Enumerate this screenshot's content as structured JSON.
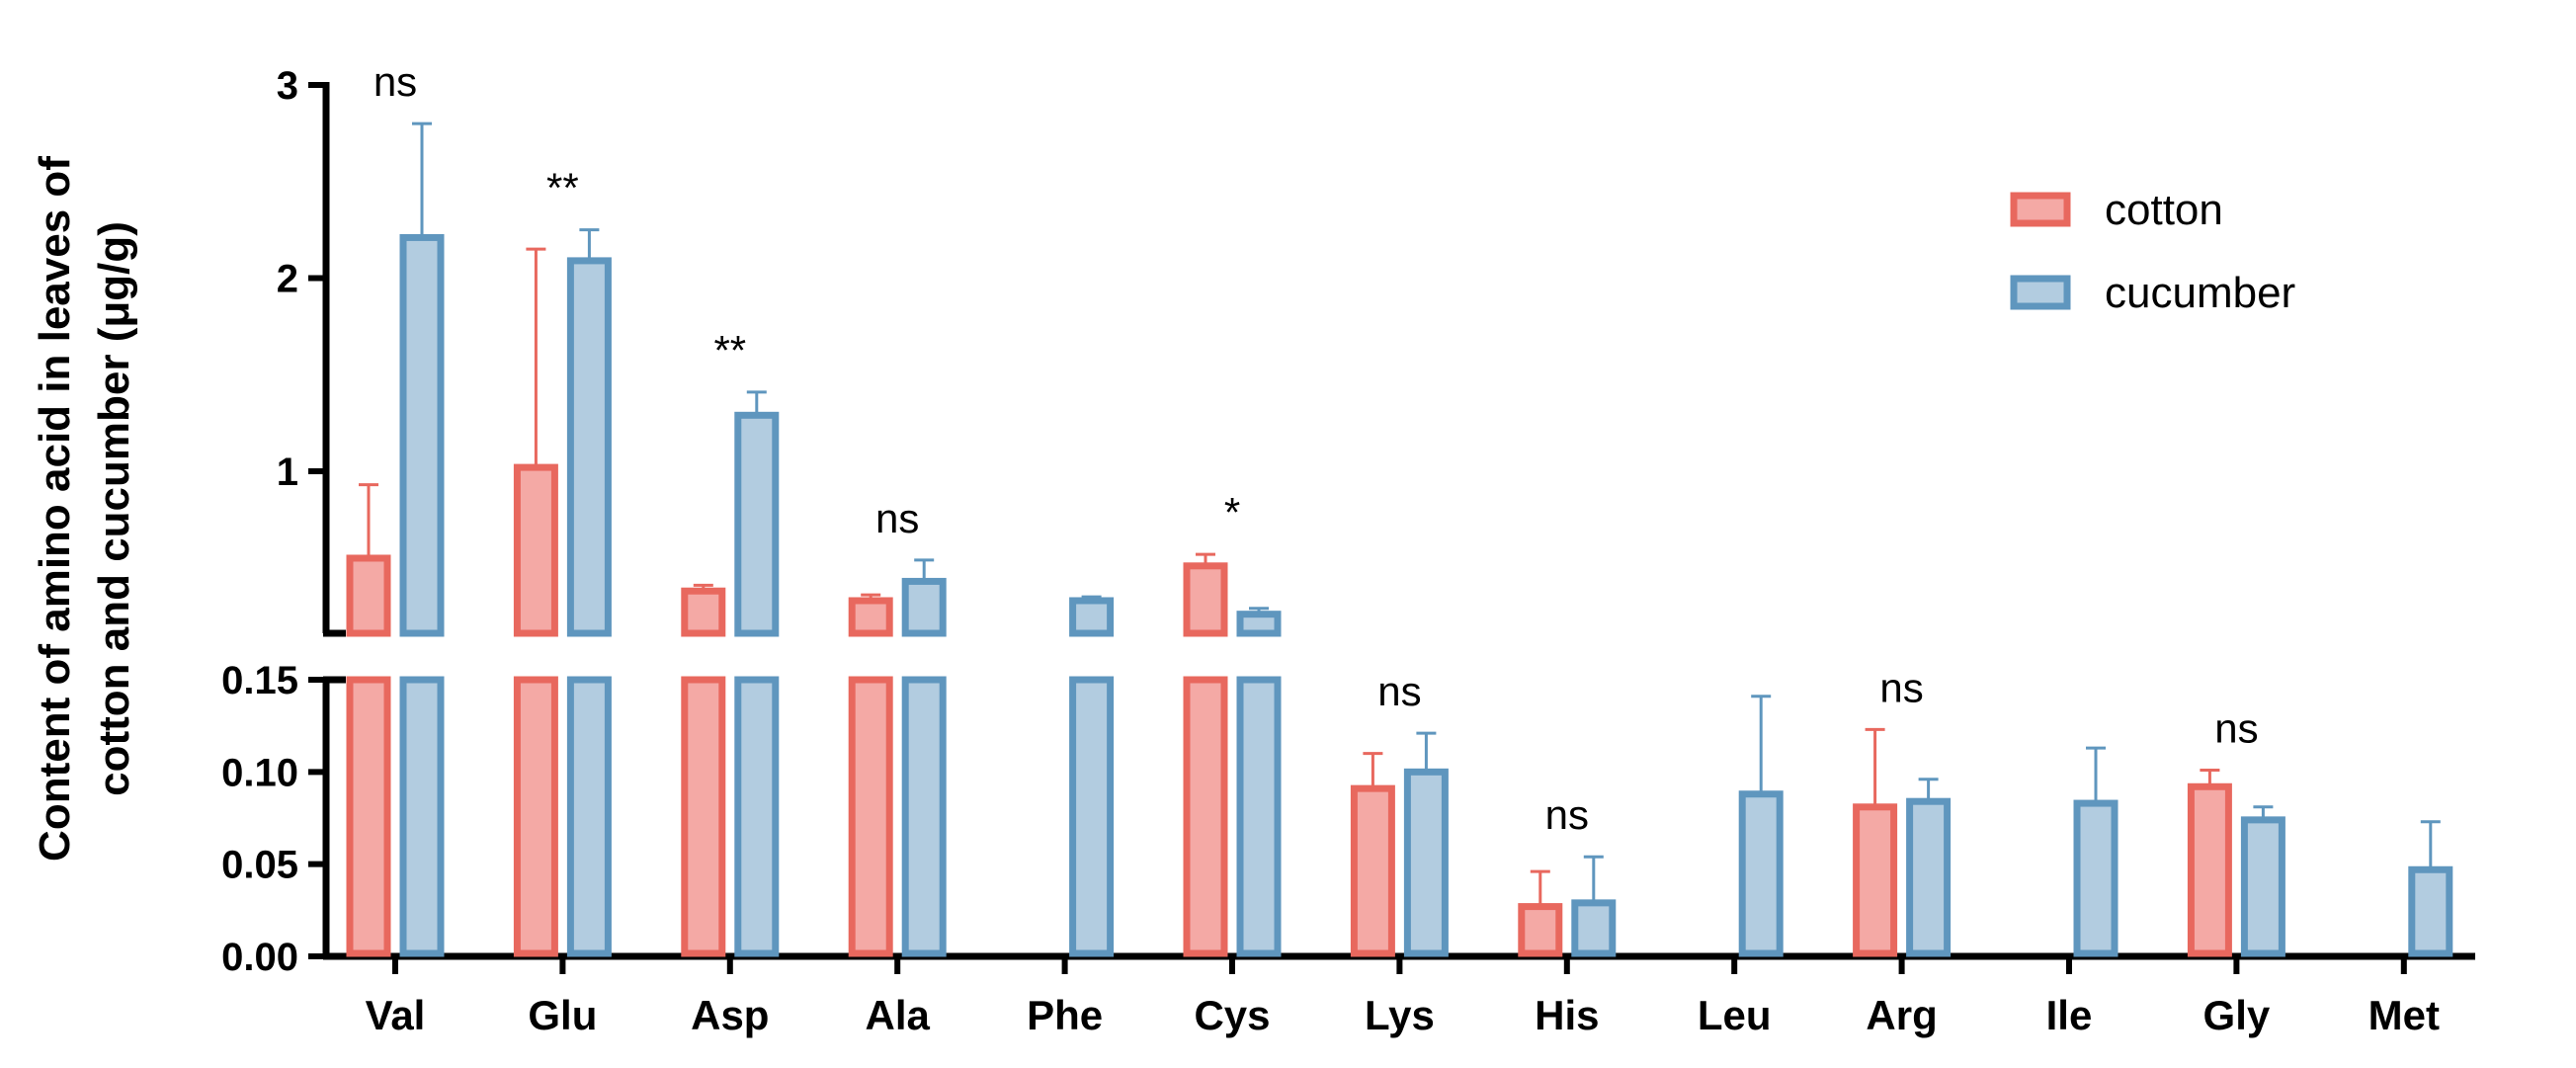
{
  "chart_data": {
    "type": "bar",
    "categories": [
      "Val",
      "Glu",
      "Asp",
      "Ala",
      "Phe",
      "Cys",
      "Lys",
      "His",
      "Leu",
      "Arg",
      "Ile",
      "Gly",
      "Met"
    ],
    "ylabel_line1": "Content of amino acid in leaves of",
    "ylabel_line2": "cotton and cucumber (μg/g)",
    "axis_break": true,
    "lower_segment": {
      "ylim": [
        0,
        0.15
      ],
      "ticks": [
        "0.00",
        "0.05",
        "0.10",
        "0.15"
      ]
    },
    "upper_segment": {
      "ylim": [
        0.15,
        3
      ],
      "ticks": [
        "1",
        "2",
        "3"
      ]
    },
    "series": [
      {
        "name": "cotton",
        "color": "#f4a9a5",
        "edge_color": "#e8685e",
        "values": [
          0.55,
          1.02,
          0.38,
          0.33,
          null,
          0.51,
          0.091,
          0.027,
          null,
          0.081,
          null,
          0.092,
          null
        ],
        "errors": [
          0.38,
          1.13,
          0.03,
          0.03,
          null,
          0.06,
          0.019,
          0.019,
          null,
          0.042,
          null,
          0.009,
          null
        ]
      },
      {
        "name": "cucumber",
        "color": "#b2cce0",
        "edge_color": "#5f96be",
        "values": [
          2.21,
          2.09,
          1.29,
          0.43,
          0.33,
          0.26,
          0.1,
          0.029,
          0.088,
          0.084,
          0.083,
          0.074,
          0.047
        ],
        "errors": [
          0.59,
          0.16,
          0.12,
          0.11,
          0.02,
          0.03,
          0.021,
          0.025,
          0.053,
          0.012,
          0.03,
          0.007,
          0.026
        ]
      }
    ],
    "significance": [
      {
        "category": "Val",
        "label": "ns"
      },
      {
        "category": "Glu",
        "label": "**"
      },
      {
        "category": "Asp",
        "label": "**"
      },
      {
        "category": "Ala",
        "label": "ns"
      },
      {
        "category": "Cys",
        "label": "*"
      },
      {
        "category": "Lys",
        "label": "ns"
      },
      {
        "category": "His",
        "label": "ns"
      },
      {
        "category": "Arg",
        "label": "ns"
      },
      {
        "category": "Gly",
        "label": "ns"
      }
    ],
    "legend": {
      "position": "top-right",
      "entries": [
        "cotton",
        "cucumber"
      ]
    },
    "grid": false
  }
}
